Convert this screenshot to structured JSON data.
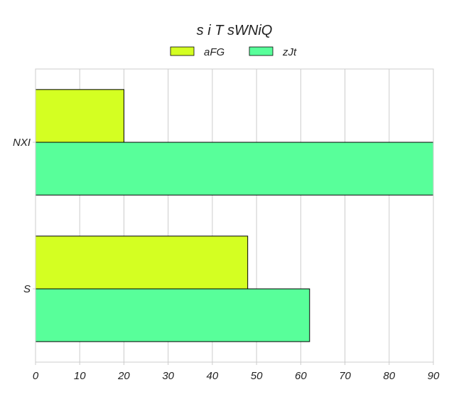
{
  "chart_data": {
    "type": "bar",
    "orientation": "horizontal",
    "title": "s i T  sWNiQ",
    "categories": [
      "NXI",
      "S"
    ],
    "series": [
      {
        "name": "aFG",
        "values": [
          20,
          48
        ],
        "color": "#d4ff22"
      },
      {
        "name": "zJt",
        "values": [
          90,
          62
        ],
        "color": "#58ff9a"
      }
    ],
    "xlim": [
      0,
      90
    ],
    "xticks": [
      0,
      10,
      20,
      30,
      40,
      50,
      60,
      70,
      80,
      90
    ],
    "xlabel": "",
    "ylabel": "",
    "grid": true,
    "legend_position": "top-center"
  }
}
